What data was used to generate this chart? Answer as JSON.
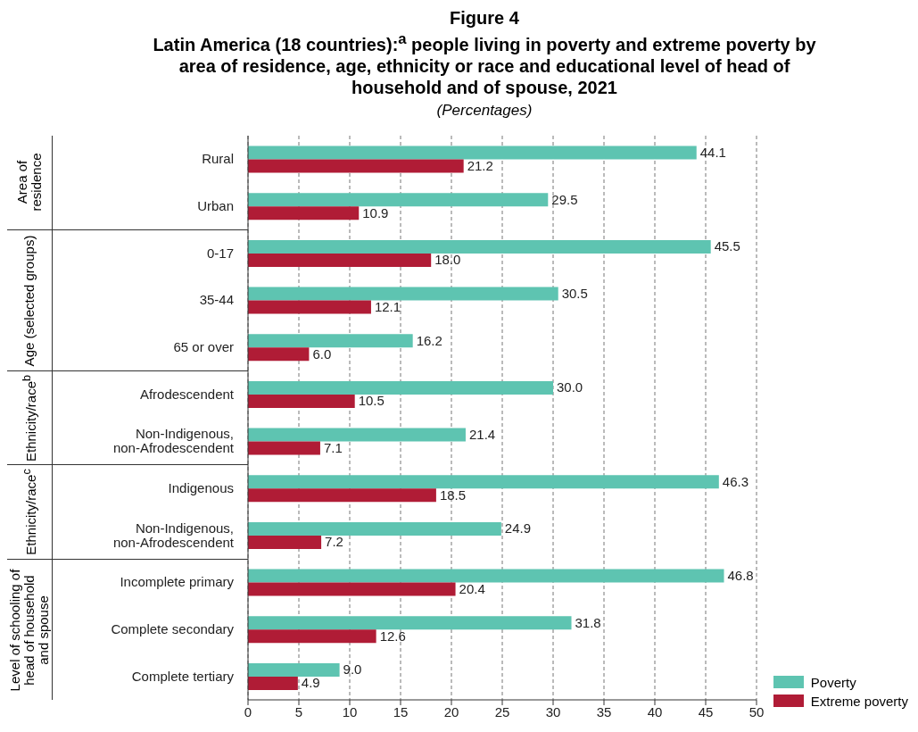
{
  "chart_data": {
    "type": "bar",
    "orientation": "horizontal",
    "title": "Figure 4",
    "subtitle": "Latin America (18 countries):$^{a}$ people living in poverty and extreme poverty by area of residence, age, ethnicity or race and educational level of head of household and of spouse, 2021",
    "xlabel": "(Percentages)",
    "categories": [
      "Rural",
      "Urban",
      "0-17",
      "35-44",
      "65 or over",
      "Afrodescendent",
      "Non-Indigenous, non-Afrodescendent",
      "Indigenous",
      "Non-Indigenous, non-Afrodescendent",
      "Incomplete primary",
      "Complete secondary",
      "Complete tertiary"
    ],
    "series": [
      {
        "name": "Poverty",
        "color": "#5ec4b1",
        "values": [
          44.1,
          29.5,
          45.5,
          30.5,
          16.2,
          30.0,
          21.4,
          46.3,
          24.9,
          46.8,
          31.8,
          9.0
        ],
        "value_labels": [
          "44.1",
          "29.5",
          "45.5",
          "30.5",
          "16.2",
          "30.0",
          "21.4",
          "46.3",
          "24.9",
          "46.8",
          "31.8",
          "9.0"
        ]
      },
      {
        "name": "Extreme poverty",
        "color": "#b01c36",
        "values": [
          21.2,
          10.9,
          18.0,
          12.1,
          6.0,
          10.5,
          7.1,
          18.5,
          7.2,
          20.4,
          12.6,
          4.9
        ],
        "value_labels": [
          "21.2",
          "10.9",
          "18.0",
          "12.1",
          "6.0",
          "10.5",
          "7.1",
          "18.5",
          "7.2",
          "20.4",
          "12.6",
          "4.9"
        ]
      }
    ],
    "annotations": [
      "Area of residence",
      "Age (selected groups)",
      "Ethnicity/race$^{b}$",
      "Ethnicity/race$^{c}$",
      "Level of schooling of head of household and spouse"
    ],
    "xlim": [
      0,
      50
    ],
    "xticks": [
      0,
      5,
      10,
      15,
      20,
      25,
      30,
      35,
      40,
      45,
      50
    ],
    "grid": "x",
    "legend": "bottom right"
  }
}
